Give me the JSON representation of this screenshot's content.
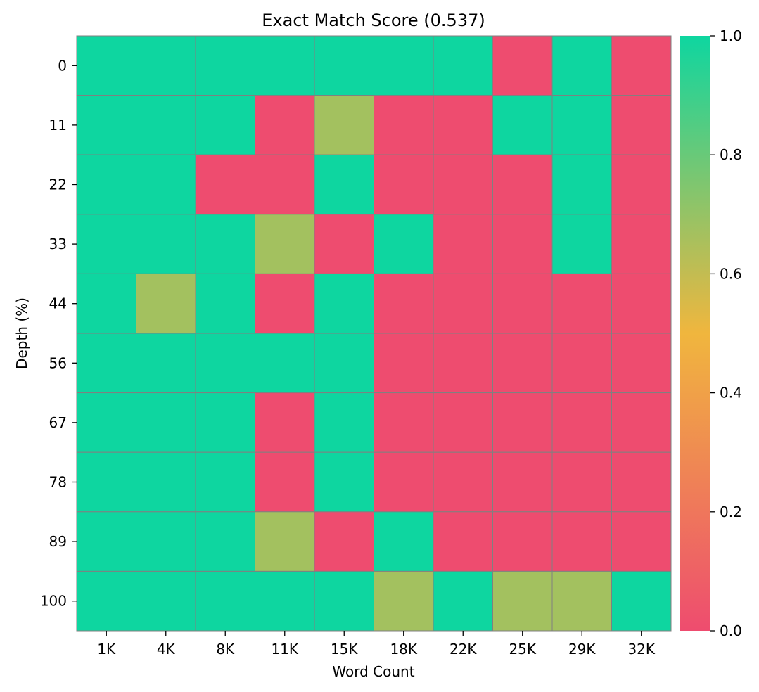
{
  "chart_data": {
    "type": "heatmap",
    "title": "Exact Match Score (0.537)",
    "xlabel": "Word Count",
    "ylabel": "Depth (%)",
    "x_categories": [
      "1K",
      "4K",
      "8K",
      "11K",
      "15K",
      "18K",
      "22K",
      "25K",
      "29K",
      "32K"
    ],
    "y_categories": [
      "0",
      "11",
      "22",
      "33",
      "44",
      "56",
      "67",
      "78",
      "89",
      "100"
    ],
    "values": [
      [
        1,
        1,
        1,
        1,
        1,
        1,
        1,
        0,
        1,
        0
      ],
      [
        1,
        1,
        1,
        0,
        0.67,
        0,
        0,
        1,
        1,
        0
      ],
      [
        1,
        1,
        0,
        0,
        1,
        0,
        0,
        0,
        1,
        0
      ],
      [
        1,
        1,
        1,
        0.67,
        0,
        1,
        0,
        0,
        1,
        0
      ],
      [
        1,
        0.67,
        1,
        0,
        1,
        0,
        0,
        0,
        0,
        0
      ],
      [
        1,
        1,
        1,
        1,
        1,
        0,
        0,
        0,
        0,
        0
      ],
      [
        1,
        1,
        1,
        0,
        1,
        0,
        0,
        0,
        0,
        0
      ],
      [
        1,
        1,
        1,
        0,
        1,
        0,
        0,
        0,
        0,
        0
      ],
      [
        1,
        1,
        1,
        0.67,
        0,
        1,
        0,
        0,
        0,
        0
      ],
      [
        1,
        1,
        1,
        1,
        1,
        0.67,
        1,
        0.67,
        0.67,
        1
      ]
    ],
    "colorbar": {
      "range": [
        0,
        1
      ],
      "ticks": [
        "0.0",
        "0.2",
        "0.4",
        "0.6",
        "0.8",
        "1.0"
      ],
      "colors": [
        "#EE4C6F",
        "#F0B63E",
        "#0ED6A0"
      ]
    },
    "grid": true,
    "cell_border_color": "#808080"
  }
}
